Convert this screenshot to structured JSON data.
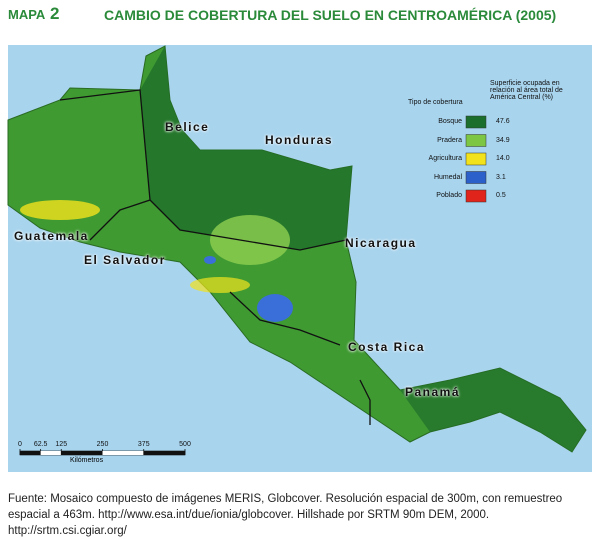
{
  "header": {
    "label": "MAPA",
    "number": "2",
    "title": "CAMBIO DE COBERTURA DEL SUELO EN CENTROAMÉRICA (2005)"
  },
  "map": {
    "countries": [
      "Belice",
      "Honduras",
      "Guatemala",
      "El Salvador",
      "Nicaragua",
      "Costa Rica",
      "Panamá"
    ]
  },
  "legend": {
    "type_header": "Tipo de cobertura",
    "value_header": "Superficie ocupada en relación al área total de América Central (%)",
    "rows": [
      {
        "name": "Bosque",
        "color": "#1b6e2c",
        "value": "47.6"
      },
      {
        "name": "Pradera",
        "color": "#7cc644",
        "value": "34.9"
      },
      {
        "name": "Agricultura",
        "color": "#f2e21c",
        "value": "14.0"
      },
      {
        "name": "Humedal",
        "color": "#2b5fc9",
        "value": "3.1"
      },
      {
        "name": "Poblado",
        "color": "#e0241c",
        "value": "0.5"
      }
    ]
  },
  "scale": {
    "ticks": [
      0,
      62.5,
      125,
      250,
      375,
      500
    ],
    "unit": "Kilómetros"
  },
  "footnote": "Fuente: Mosaico compuesto de imágenes MERIS, Globcover. Resolución espacial de 300m, con remuestreo espacial a 463m. http://www.esa.int/due/ionia/globcover. Hillshade por SRTM 90m DEM, 2000. http://srtm.csi.cgiar.org/"
}
